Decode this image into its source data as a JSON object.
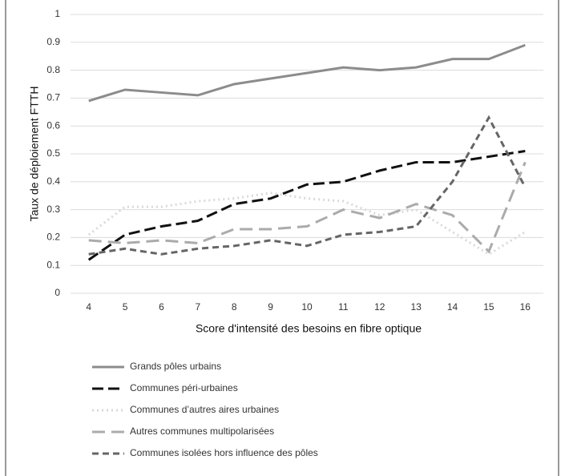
{
  "chart_data": {
    "type": "line",
    "x_label": "Score d'intensité des besoins en fibre optique",
    "y_label": "Taux de déploiement FTTH",
    "x": [
      4,
      5,
      6,
      7,
      8,
      9,
      10,
      11,
      12,
      13,
      14,
      15,
      16
    ],
    "xlim": [
      3.5,
      16.5
    ],
    "xticks": [
      4,
      5,
      6,
      7,
      8,
      9,
      10,
      11,
      12,
      13,
      14,
      15,
      16
    ],
    "ylim": [
      0,
      1
    ],
    "yticks": [
      0,
      0.1,
      0.2,
      0.3,
      0.4,
      0.5,
      0.6,
      0.7,
      0.8,
      0.9,
      1
    ],
    "grid": true,
    "legend": "bottom",
    "series": [
      {
        "name": "Grands pôles urbains",
        "color": "#8c8c8c",
        "values": [
          0.69,
          0.73,
          0.72,
          0.71,
          0.75,
          0.77,
          0.79,
          0.81,
          0.8,
          0.81,
          0.84,
          0.84,
          0.89
        ]
      },
      {
        "name": "Communes péri-urbaines",
        "color": "#111111",
        "values": [
          0.12,
          0.21,
          0.24,
          0.26,
          0.32,
          0.34,
          0.39,
          0.4,
          0.44,
          0.47,
          0.47,
          0.49,
          0.51
        ]
      },
      {
        "name": "Communes d’autres aires urbaines",
        "color": "#d9d9d9",
        "values": [
          0.21,
          0.31,
          0.31,
          0.33,
          0.34,
          0.36,
          0.34,
          0.33,
          0.28,
          0.3,
          0.22,
          0.14,
          0.22
        ]
      },
      {
        "name": "Autres communes multipolarisées",
        "color": "#ababab",
        "values": [
          0.19,
          0.18,
          0.19,
          0.18,
          0.23,
          0.23,
          0.24,
          0.3,
          0.27,
          0.32,
          0.28,
          0.15,
          0.47
        ]
      },
      {
        "name": "Communes isolées hors influence des pôles",
        "color": "#666666",
        "values": [
          0.14,
          0.16,
          0.14,
          0.16,
          0.17,
          0.19,
          0.17,
          0.21,
          0.22,
          0.24,
          0.4,
          0.63,
          0.38
        ]
      }
    ]
  }
}
